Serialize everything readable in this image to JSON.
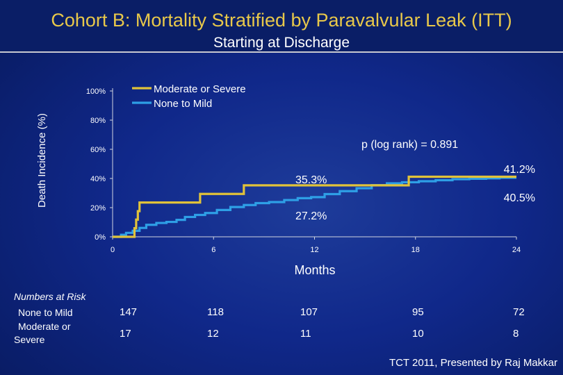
{
  "title": "Cohort B: Mortality Stratified by Paravalvular Leak (ITT)",
  "subtitle": "Starting at Discharge",
  "footer": "TCT 2011, Presented by Raj Makkar",
  "colors": {
    "moderate_severe": "#e0c23a",
    "none_mild": "#2e9fe6",
    "title": "#e8c84a"
  },
  "chart_data": {
    "type": "line",
    "xlabel": "Months",
    "ylabel": "Death Incidence (%)",
    "xlim": [
      0,
      24
    ],
    "ylim": [
      0,
      100
    ],
    "x_ticks": [
      0,
      6,
      12,
      18,
      24
    ],
    "y_ticks": [
      0,
      20,
      40,
      60,
      80,
      100
    ],
    "y_tick_labels": [
      "0%",
      "20%",
      "40%",
      "60%",
      "80%",
      "100%"
    ],
    "legend": {
      "placement": "top-left",
      "entries": [
        "Moderate or Severe",
        "None to Mild"
      ]
    },
    "series": [
      {
        "name": "Moderate or Severe",
        "step": true,
        "x": [
          0,
          1.3,
          1.4,
          1.5,
          1.6,
          5.2,
          7.8,
          17.6,
          24
        ],
        "y": [
          0,
          5.9,
          11.8,
          17.6,
          23.5,
          29.4,
          35.3,
          41.2,
          41.2
        ]
      },
      {
        "name": "None to Mild",
        "step": true,
        "x": [
          0,
          0.5,
          0.8,
          1.2,
          1.6,
          2.0,
          2.6,
          3.2,
          3.8,
          4.3,
          4.9,
          5.5,
          6.2,
          7.0,
          7.8,
          8.5,
          9.3,
          10.2,
          11.0,
          11.8,
          12.6,
          13.5,
          14.5,
          15.4,
          16.3,
          17.2,
          18.2,
          19.2,
          20.2,
          21.2,
          22.2,
          23.0,
          24
        ],
        "y": [
          0,
          1.4,
          2.7,
          4.1,
          6.1,
          8.2,
          9.5,
          10.2,
          11.6,
          13.6,
          15.0,
          16.3,
          18.4,
          20.4,
          21.8,
          23.1,
          23.8,
          25.2,
          26.5,
          27.2,
          29.3,
          31.3,
          33.3,
          35.4,
          36.7,
          37.4,
          38.1,
          38.8,
          39.5,
          39.8,
          40.1,
          40.5,
          40.5
        ]
      }
    ],
    "annotations": [
      {
        "text": "p (log rank) = 0.891"
      },
      {
        "text": "35.3%",
        "x": 12,
        "y": 35.3
      },
      {
        "text": "27.2%",
        "x": 12,
        "y": 27.2
      },
      {
        "text": "41.2%",
        "x": 24,
        "y": 41.2
      },
      {
        "text": "40.5%",
        "x": 24,
        "y": 40.5
      }
    ]
  },
  "risk_table": {
    "title": "Numbers at Risk",
    "months": [
      0,
      6,
      12,
      18,
      24
    ],
    "rows": [
      {
        "label": "None to Mild",
        "values": [
          "147",
          "118",
          "107",
          "95",
          "72"
        ]
      },
      {
        "label_line1": "Moderate or",
        "label_line2": "Severe",
        "values": [
          "17",
          "12",
          "11",
          "10",
          "8"
        ]
      }
    ]
  }
}
